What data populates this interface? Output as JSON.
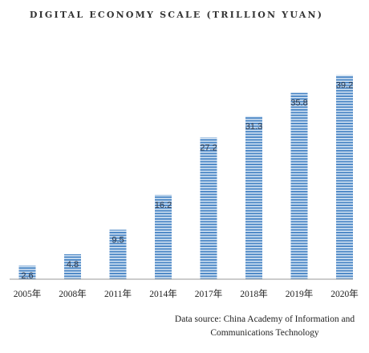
{
  "chart_data": {
    "type": "bar",
    "title": "DIGITAL ECONOMY SCALE (TRILLION YUAN)",
    "categories": [
      "2005年",
      "2008年",
      "2011年",
      "2014年",
      "2017年",
      "2018年",
      "2019年",
      "2020年"
    ],
    "series": [
      {
        "values": [
          2.6,
          4.8,
          9.5,
          16.2,
          27.2,
          31.3,
          35.8,
          39.2
        ]
      }
    ],
    "value_labels": [
      "2.6",
      "4.8",
      "9.5",
      "16.2",
      "27.2",
      "31.3",
      "35.8",
      "39.2"
    ],
    "ylim": [
      0,
      41
    ],
    "grid": false,
    "bar_color": "#4a86c5",
    "bar_stripe_color": "#dce9f6"
  },
  "source": {
    "line1": "Data source: China Academy of Information and",
    "line2": "Communications Technology"
  }
}
